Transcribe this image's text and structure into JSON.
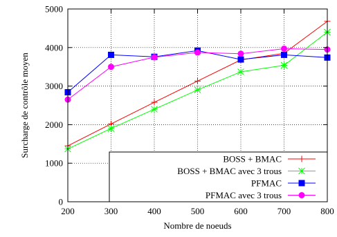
{
  "chart_data": {
    "type": "line",
    "xlabel": "Nombre de noeuds",
    "ylabel": "Surcharge de contrôle moyen",
    "x": [
      200,
      300,
      400,
      500,
      600,
      700,
      800
    ],
    "xlim": [
      200,
      800
    ],
    "ylim": [
      0,
      5000
    ],
    "xticks": [
      200,
      300,
      400,
      500,
      600,
      700,
      800
    ],
    "yticks": [
      0,
      1000,
      2000,
      3000,
      4000,
      5000
    ],
    "grid": true,
    "legend_position": "bottom-right",
    "series": [
      {
        "name": "BOSS + BMAC",
        "color": "#ff0000",
        "marker": "plus",
        "values": [
          1450,
          2020,
          2580,
          3130,
          3680,
          3850,
          4680
        ]
      },
      {
        "name": "BOSS + BMAC avec 3 trous",
        "color": "#00ff00",
        "marker": "star",
        "values": [
          1370,
          1900,
          2400,
          2900,
          3370,
          3540,
          4400
        ]
      },
      {
        "name": "PFMAC",
        "color": "#0000ff",
        "marker": "square",
        "values": [
          2840,
          3810,
          3760,
          3920,
          3690,
          3810,
          3740
        ]
      },
      {
        "name": "PFMAC avec 3 trous",
        "color": "#ff00ff",
        "marker": "circle",
        "values": [
          2650,
          3500,
          3750,
          3870,
          3840,
          3970,
          3950
        ]
      }
    ]
  }
}
